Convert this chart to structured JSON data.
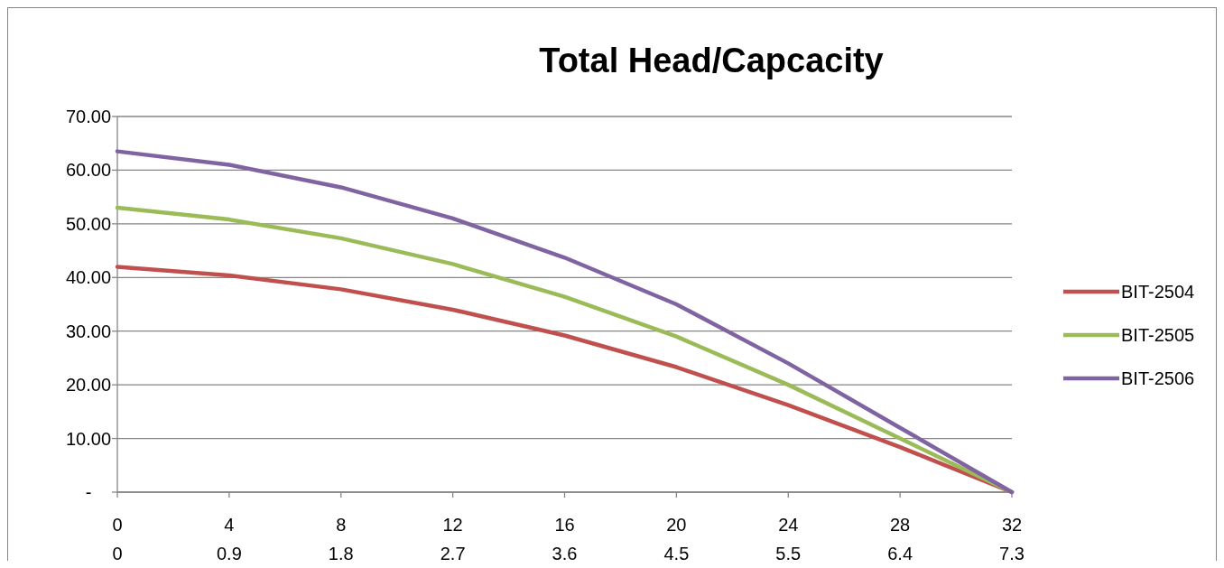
{
  "chart_data": {
    "type": "line",
    "title": "Total Head/Capcacity",
    "x": [
      0,
      4,
      8,
      12,
      16,
      20,
      24,
      28,
      32
    ],
    "xlim": [
      0,
      32
    ],
    "xticks": [
      0,
      4,
      8,
      12,
      16,
      20,
      24,
      28,
      32
    ],
    "x2lim": [
      0,
      7.28
    ],
    "x2ticks": [
      {
        "value": 0,
        "label": "0"
      },
      {
        "value": 0.91,
        "label": "0.9"
      },
      {
        "value": 1.82,
        "label": "1.8"
      },
      {
        "value": 2.73,
        "label": "2.7"
      },
      {
        "value": 3.64,
        "label": "3.6"
      },
      {
        "value": 4.55,
        "label": "4.5"
      },
      {
        "value": 5.46,
        "label": "5.5"
      },
      {
        "value": 6.37,
        "label": "6.4"
      },
      {
        "value": 7.28,
        "label": "7.3"
      }
    ],
    "ylim": [
      0,
      70
    ],
    "yticks": [
      {
        "value": 0,
        "label": "-"
      },
      {
        "value": 10,
        "label": "10.00"
      },
      {
        "value": 20,
        "label": "20.00"
      },
      {
        "value": 30,
        "label": "30.00"
      },
      {
        "value": 40,
        "label": "40.00"
      },
      {
        "value": 50,
        "label": "50.00"
      },
      {
        "value": 60,
        "label": "60.00"
      },
      {
        "value": 70,
        "label": "70.00"
      }
    ],
    "grid": "y",
    "legend": "right",
    "marker": "none",
    "line_style": "solid",
    "series": [
      {
        "name": "BIT-2504",
        "color": "#c0504d",
        "values": [
          42,
          40.4,
          37.8,
          34,
          29.2,
          23.3,
          16.2,
          8.4,
          0
        ]
      },
      {
        "name": "BIT-2505",
        "color": "#9bbb59",
        "values": [
          53,
          50.8,
          47.3,
          42.5,
          36.4,
          29,
          20,
          10,
          0
        ]
      },
      {
        "name": "BIT-2506",
        "color": "#8064a2",
        "values": [
          63.5,
          61,
          56.8,
          51,
          43.7,
          35,
          24,
          12,
          0
        ]
      }
    ]
  }
}
